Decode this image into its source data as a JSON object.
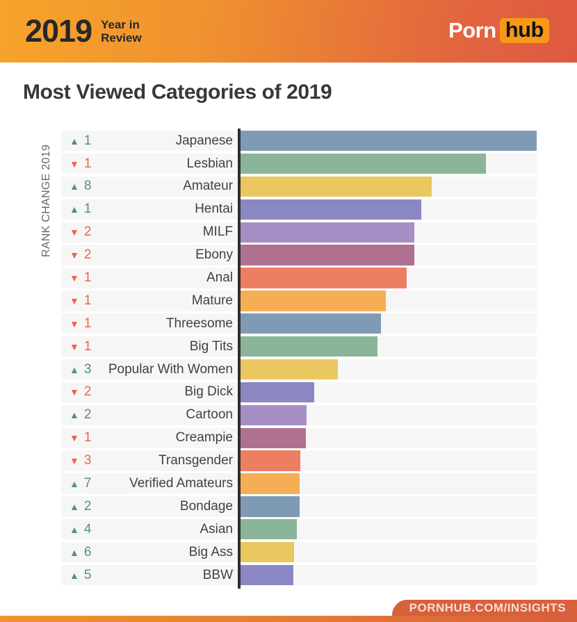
{
  "header": {
    "year": "2019",
    "subtitle_line1": "Year in",
    "subtitle_line2": "Review",
    "logo_porn": "Porn",
    "logo_hub": "hub"
  },
  "title": "Most Viewed Categories of 2019",
  "axis_label": "RANK CHANGE 2019",
  "footer": {
    "url": "PORNHUB.COM/INSIGHTS"
  },
  "icons": {
    "rank_up": "▲",
    "rank_down": "▼"
  },
  "colors": {
    "rank_up": "#55926f",
    "rank_down": "#ef654a",
    "row_background": "#f6f6f6",
    "axis_line": "#2e2e2e",
    "header_gradient_left": "#f6a42b",
    "header_gradient_right": "#df5942",
    "hub_badge": "#f79817",
    "footer_tab": "#d8603c"
  },
  "chart_data": {
    "type": "bar",
    "orientation": "horizontal",
    "title": "Most Viewed Categories of 2019",
    "axis_label": "RANK CHANGE 2019",
    "value_unit": "bar length as % of top category (no numeric axis shown)",
    "xlim": [
      0,
      100
    ],
    "grid": false,
    "legend": false,
    "categories": [
      "Japanese",
      "Lesbian",
      "Amateur",
      "Hentai",
      "MILF",
      "Ebony",
      "Anal",
      "Mature",
      "Threesome",
      "Big Tits",
      "Popular With Women",
      "Big Dick",
      "Cartoon",
      "Creampie",
      "Transgender",
      "Verified Amateurs",
      "Bondage",
      "Asian",
      "Big Ass",
      "BBW"
    ],
    "values": [
      100,
      83.0,
      64.7,
      61.2,
      58.9,
      58.9,
      56.3,
      49.3,
      47.7,
      46.5,
      33.2,
      25.2,
      22.7,
      22.4,
      20.6,
      20.3,
      20.3,
      19.4,
      18.5,
      18.2
    ],
    "rank_changes": [
      {
        "direction": "up",
        "amount": 1
      },
      {
        "direction": "down",
        "amount": 1
      },
      {
        "direction": "up",
        "amount": 8
      },
      {
        "direction": "up",
        "amount": 1
      },
      {
        "direction": "down",
        "amount": 2
      },
      {
        "direction": "down",
        "amount": 2
      },
      {
        "direction": "down",
        "amount": 1
      },
      {
        "direction": "down",
        "amount": 1
      },
      {
        "direction": "down",
        "amount": 1
      },
      {
        "direction": "down",
        "amount": 1
      },
      {
        "direction": "up",
        "amount": 3
      },
      {
        "direction": "down",
        "amount": 2
      },
      {
        "direction": "up",
        "amount": 2
      },
      {
        "direction": "down",
        "amount": 1
      },
      {
        "direction": "down",
        "amount": 3
      },
      {
        "direction": "up",
        "amount": 7
      },
      {
        "direction": "up",
        "amount": 2
      },
      {
        "direction": "up",
        "amount": 4
      },
      {
        "direction": "up",
        "amount": 6
      },
      {
        "direction": "up",
        "amount": 5
      }
    ],
    "bar_colors": [
      "#7f9ab5",
      "#8bb598",
      "#ebc75f",
      "#8b87c3",
      "#a58fc4",
      "#af7190",
      "#ee7e62",
      "#f6ae54"
    ]
  }
}
